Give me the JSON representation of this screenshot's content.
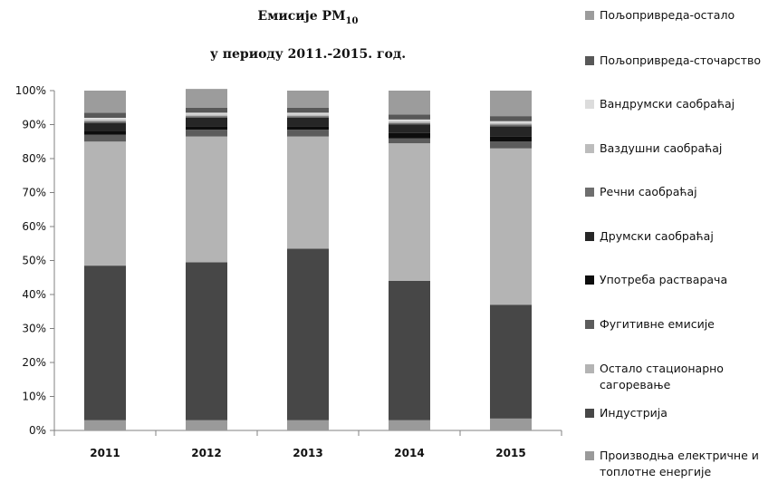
{
  "chart_data": {
    "type": "bar",
    "title_main": "Емисије PM",
    "title_sub": "10",
    "subtitle": "у периоду 2011.-2015. год.",
    "categories": [
      "2011",
      "2012",
      "2013",
      "2014",
      "2015"
    ],
    "ylim": [
      0,
      100
    ],
    "yticks": [
      "0%",
      "10%",
      "20%",
      "30%",
      "40%",
      "50%",
      "60%",
      "70%",
      "80%",
      "90%",
      "100%"
    ],
    "stacked": true,
    "percent": true,
    "legend_position": "right",
    "series": [
      {
        "name": "Производња електричне и топлотне енергије",
        "color": "#9a9a9a",
        "values": [
          3,
          3,
          3,
          3,
          3.5
        ]
      },
      {
        "name": "Индустрија",
        "color": "#474747",
        "values": [
          45.5,
          46.5,
          50.5,
          41,
          33.5
        ]
      },
      {
        "name": "Остало стационарно сагоревање",
        "color": "#b4b4b4",
        "values": [
          36.5,
          37,
          33,
          40.5,
          46
        ]
      },
      {
        "name": "Фугитивне емисије",
        "color": "#5c5c5c",
        "values": [
          2,
          2,
          2,
          1.5,
          2
        ]
      },
      {
        "name": "Употреба растварача",
        "color": "#0d0d0d",
        "values": [
          1,
          1,
          1,
          1.5,
          1.5
        ]
      },
      {
        "name": "Друмски саобраћај",
        "color": "#262626",
        "values": [
          2.5,
          2.5,
          2.5,
          2.5,
          3
        ]
      },
      {
        "name": "Речни саобраћај",
        "color": "#6e6e6e",
        "values": [
          0.5,
          0.5,
          0.5,
          0.5,
          0.5
        ]
      },
      {
        "name": "Ваздушни саобраћај",
        "color": "#bcbcbc",
        "values": [
          0.5,
          0.5,
          0.5,
          0.5,
          0.5
        ]
      },
      {
        "name": "Вандрумски саобраћај",
        "color": "#dcdcdc",
        "values": [
          0.5,
          0.5,
          0.5,
          0.5,
          0.5
        ]
      },
      {
        "name": "Пољопривреда-сточарство",
        "color": "#585858",
        "values": [
          1.5,
          1.5,
          1.5,
          1.5,
          1.5
        ]
      },
      {
        "name": "Пољопривреда-остало",
        "color": "#9c9c9c",
        "values": [
          6.5,
          5.5,
          5,
          7,
          7.5
        ]
      }
    ]
  }
}
